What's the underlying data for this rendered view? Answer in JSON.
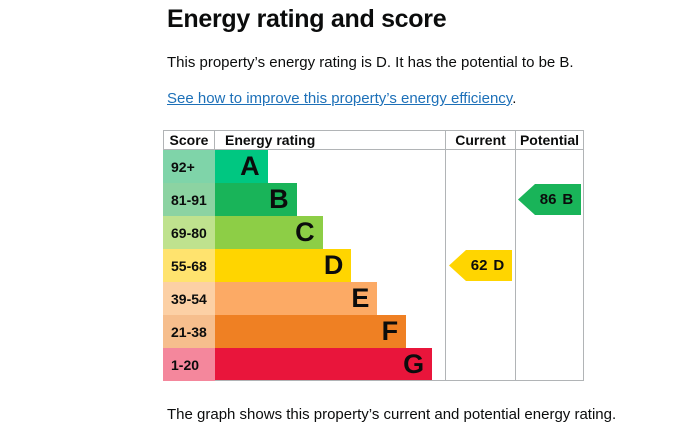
{
  "header": {
    "title": "Energy rating and score",
    "summary": "This property’s energy rating is D. It has the potential to be B.",
    "link": "See how to improve this property’s energy efficiency",
    "link_suffix": "."
  },
  "footer": {
    "caption": "The graph shows this property’s current and potential energy rating."
  },
  "chart_data": {
    "type": "epc-energy-rating-chart",
    "columns": [
      "Score",
      "Energy rating",
      "Current",
      "Potential"
    ],
    "bands": [
      {
        "score_range": "92+",
        "letter": "A",
        "color": "#00c781",
        "score_bg": "#7fd4a9",
        "width_pct": 22.9
      },
      {
        "score_range": "81-91",
        "letter": "B",
        "color": "#19b459",
        "score_bg": "#8cd3a2",
        "width_pct": 35.5
      },
      {
        "score_range": "69-80",
        "letter": "C",
        "color": "#8dce46",
        "score_bg": "#bfe28e",
        "width_pct": 46.8
      },
      {
        "score_range": "55-68",
        "letter": "D",
        "color": "#ffd500",
        "score_bg": "#ffe36e",
        "width_pct": 59.3
      },
      {
        "score_range": "39-54",
        "letter": "E",
        "color": "#fcaa65",
        "score_bg": "#fcd0a5",
        "width_pct": 70.6
      },
      {
        "score_range": "21-38",
        "letter": "F",
        "color": "#ef8023",
        "score_bg": "#f6be8d",
        "width_pct": 83.1
      },
      {
        "score_range": "1-20",
        "letter": "G",
        "color": "#e9153b",
        "score_bg": "#f4879c",
        "width_pct": 94.4
      }
    ],
    "current": {
      "value": "62",
      "letter": "D",
      "color": "#ffd500",
      "band_index": 3
    },
    "potential": {
      "value": "86",
      "letter": "B",
      "color": "#19b459",
      "band_index": 1
    }
  },
  "colors": {
    "text": "#0b0c0c",
    "link": "#1d70b8",
    "border": "#b1b4b6"
  }
}
